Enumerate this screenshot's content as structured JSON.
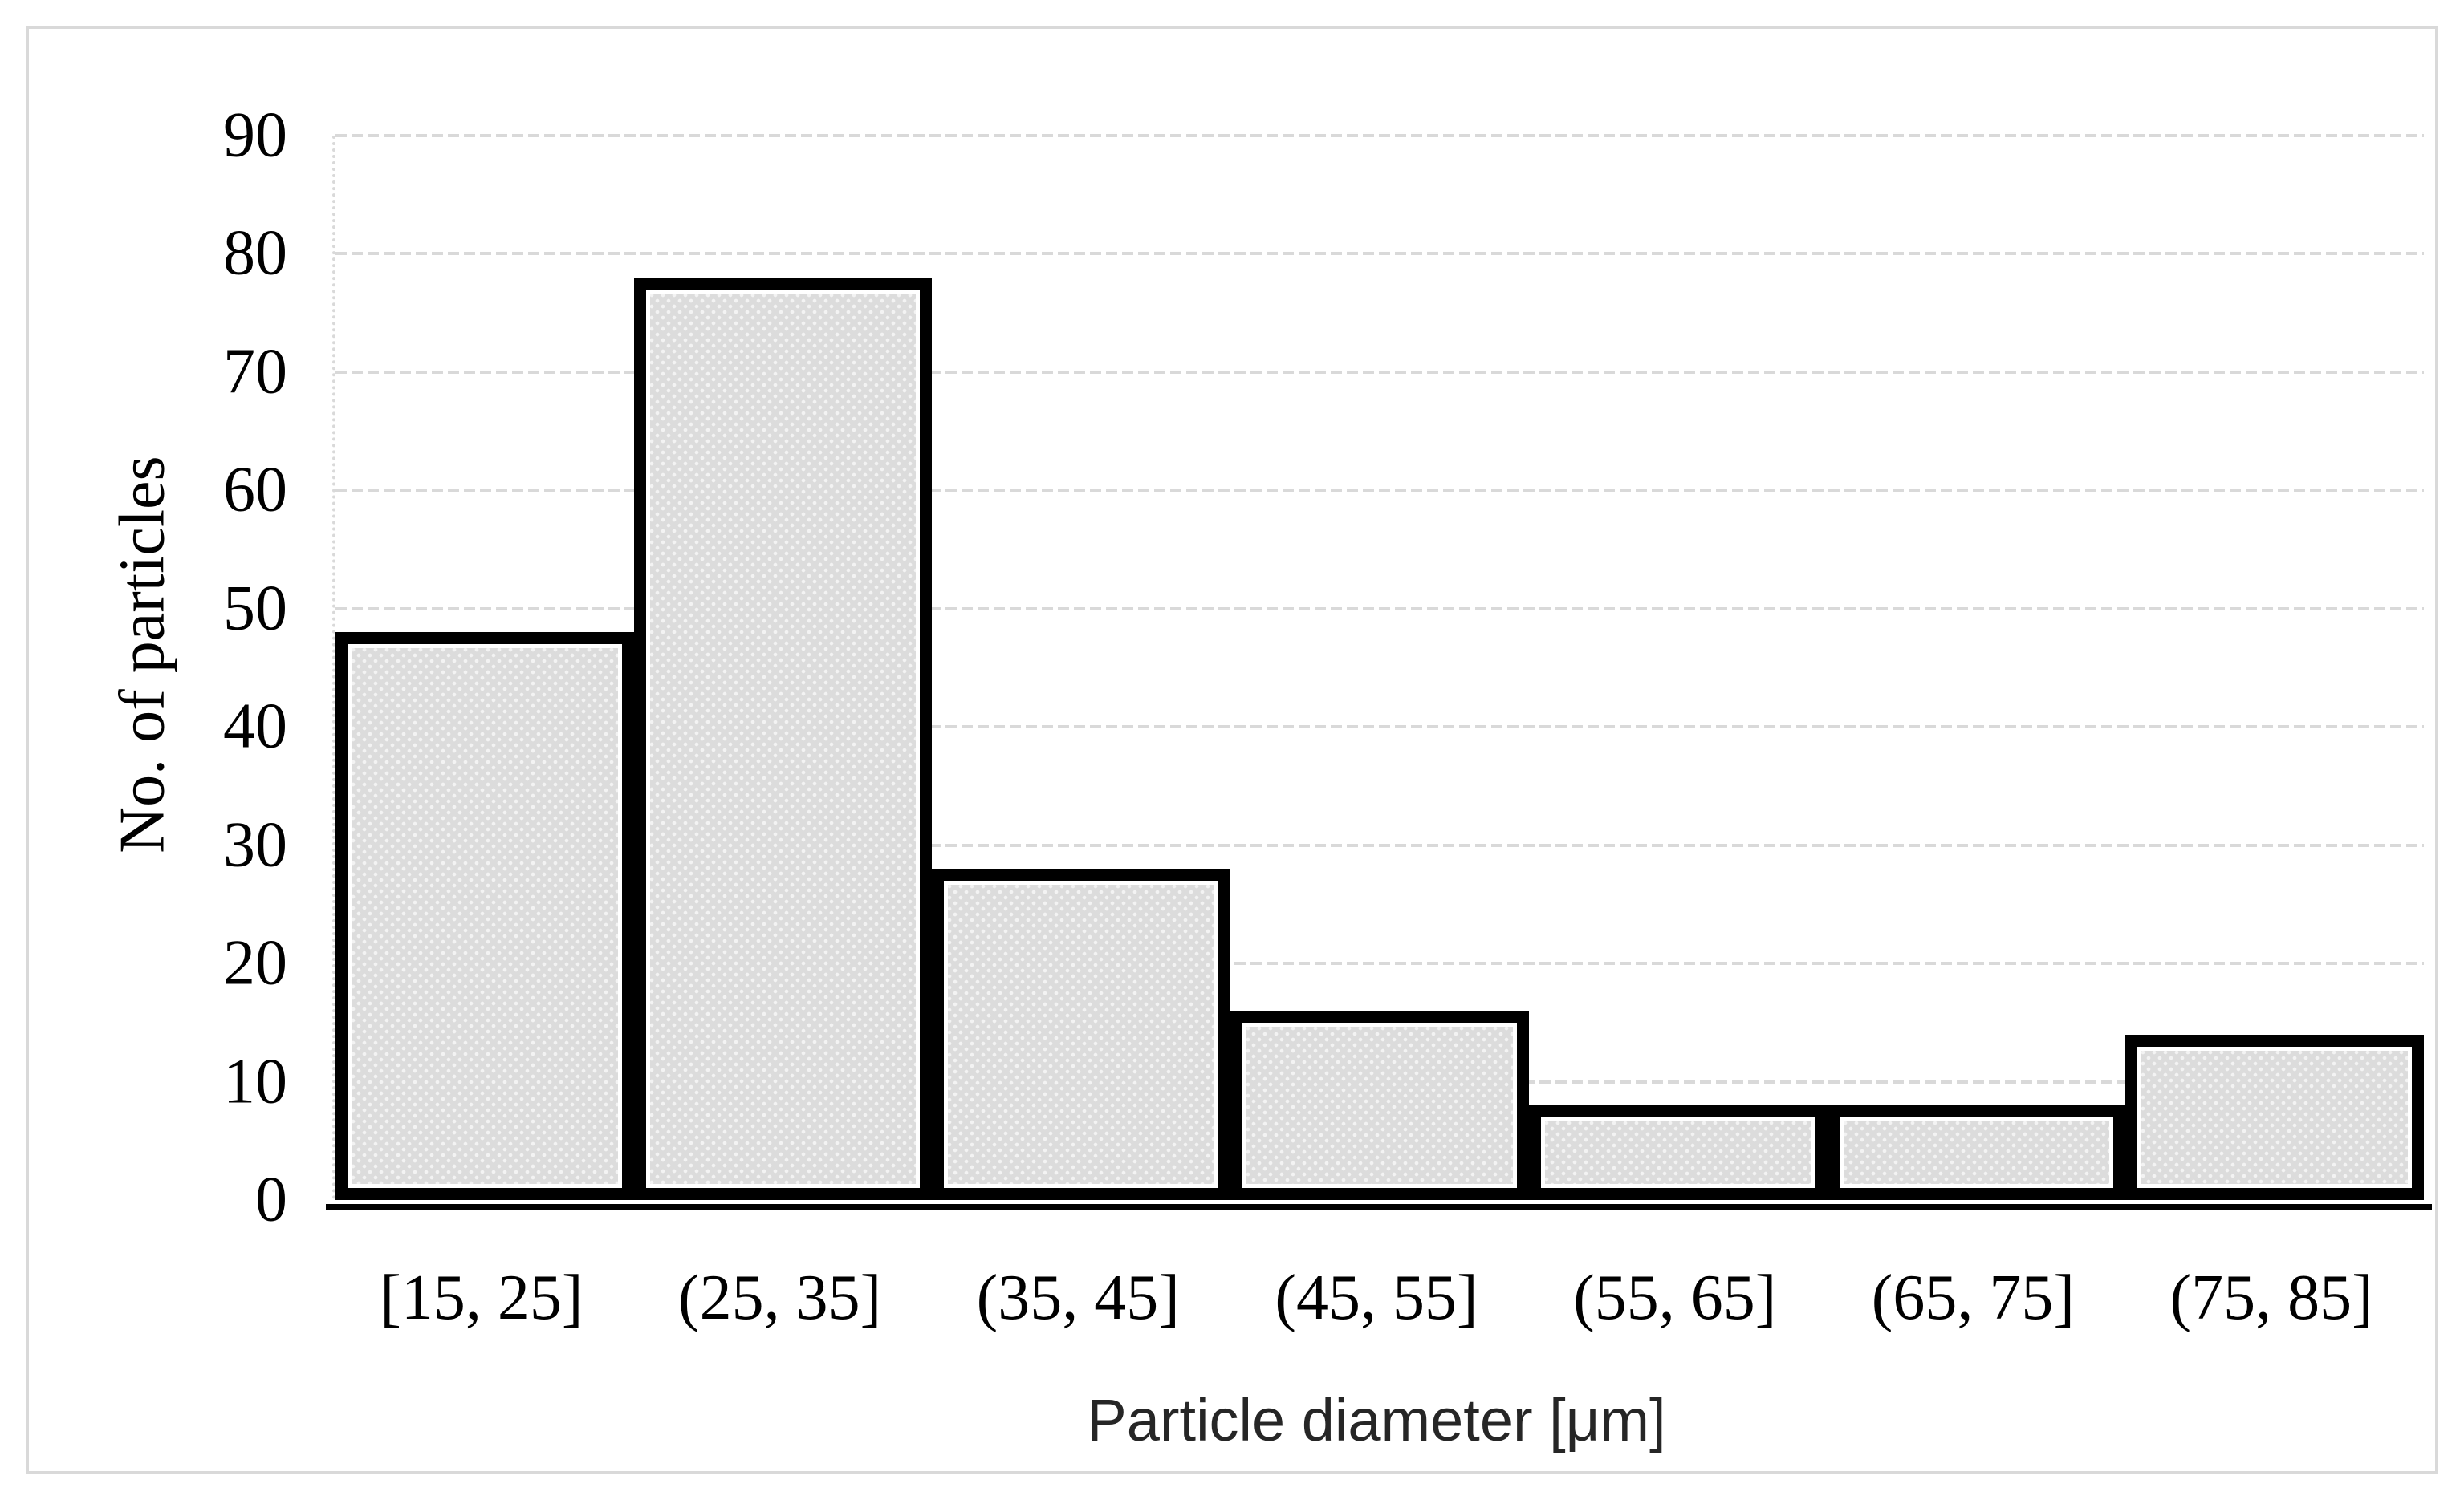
{
  "figure": {
    "background_color": "#ffffff",
    "frame_border_color": "#d9d9d9"
  },
  "chart_data": {
    "type": "bar",
    "subtype": "histogram",
    "title": "",
    "categories": [
      "[15, 25]",
      "(25, 35]",
      "(35, 45]",
      "(45, 55]",
      "(55, 65]",
      "(65, 75]",
      "(75, 85]"
    ],
    "values": [
      48,
      78,
      28,
      16,
      8,
      8,
      14
    ],
    "xlabel": "Particle diameter [μm]",
    "ylabel": "No. of particles",
    "ylim": [
      0,
      90
    ],
    "y_ticks": [
      0,
      10,
      20,
      30,
      40,
      50,
      60,
      70,
      80,
      90
    ],
    "grid": "horizontal-dotted",
    "legend_position": "none",
    "gap_width_percent": 0,
    "bar_fill_color": "#dcdcdc",
    "bar_border_color": "#000000",
    "gridline_color": "#d9d9d9",
    "tick_label_color": "#000000",
    "x_title_color": "#262626"
  }
}
